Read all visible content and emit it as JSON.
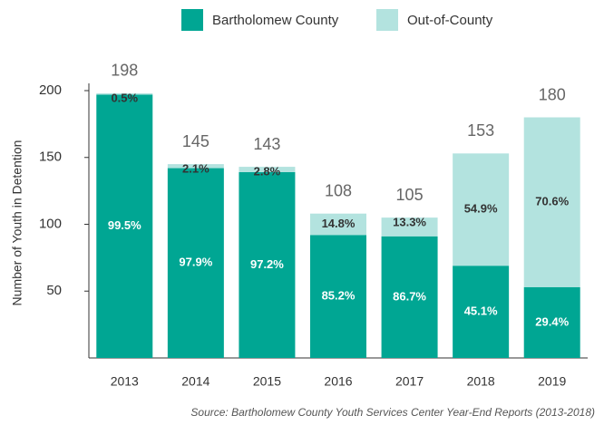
{
  "chart_data": {
    "type": "stacked_bar",
    "y_label": "Number of Youth in Detention",
    "source": "Source: Bartholomew County Youth Services Center Year-End Reports (2013-2018)",
    "categories": [
      "2013",
      "2014",
      "2015",
      "2016",
      "2017",
      "2018",
      "2019"
    ],
    "series": [
      {
        "name": "Bartholomew County",
        "color": "#00a693",
        "values": [
          197,
          142,
          139,
          92,
          91,
          69,
          53
        ],
        "value_labels": [
          "99.5%",
          "97.9%",
          "97.2%",
          "85.2%",
          "86.7%",
          "45.1%",
          "29.4%"
        ]
      },
      {
        "name": "Out-of-County",
        "color": "#b3e3df",
        "values": [
          1,
          3,
          4,
          16,
          14,
          84,
          127
        ],
        "value_labels": [
          "0.5%",
          "2.1%",
          "2.8%",
          "14.8%",
          "13.3%",
          "54.9%",
          "70.6%"
        ]
      }
    ],
    "totals": [
      198,
      145,
      143,
      108,
      105,
      153,
      180
    ],
    "ylim": [
      0,
      200
    ],
    "yticks": [
      50,
      100,
      150,
      200
    ],
    "grid": false
  }
}
